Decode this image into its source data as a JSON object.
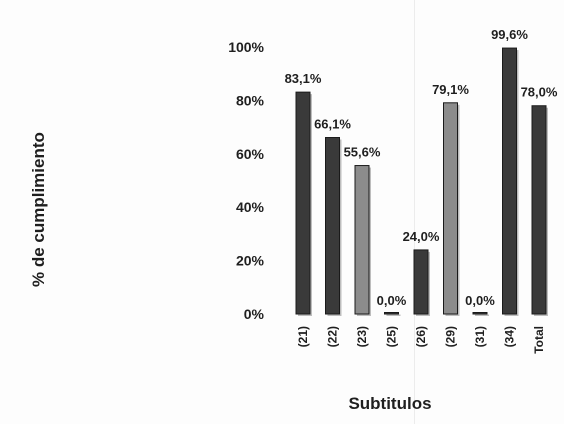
{
  "chart_data": {
    "type": "bar",
    "xlabel": "Subtitulos",
    "ylabel": "% de cumplimiento",
    "ylim": [
      0,
      100
    ],
    "yticks": [
      0,
      20,
      40,
      60,
      80,
      100
    ],
    "ytick_labels": [
      "0%",
      "20%",
      "40%",
      "60%",
      "80%",
      "100%"
    ],
    "categories": [
      "(21)",
      "(22)",
      "(23)",
      "(25)",
      "(26)",
      "(29)",
      "(31)",
      "(34)",
      "Total"
    ],
    "values": [
      83.1,
      66.1,
      55.6,
      0.0,
      24.0,
      79.1,
      0.0,
      99.6,
      78.0
    ],
    "data_labels": [
      "83,1%",
      "66,1%",
      "55,6%",
      "0,0%",
      "24,0%",
      "79,1%",
      "0,0%",
      "99,6%",
      "78,0%"
    ],
    "bar_colors": [
      "#3a3a3a",
      "#3a3a3a",
      "#8c8c8c",
      "#3a3a3a",
      "#3a3a3a",
      "#8c8c8c",
      "#3a3a3a",
      "#3a3a3a",
      "#3a3a3a"
    ],
    "grid": false,
    "legend": "none"
  }
}
